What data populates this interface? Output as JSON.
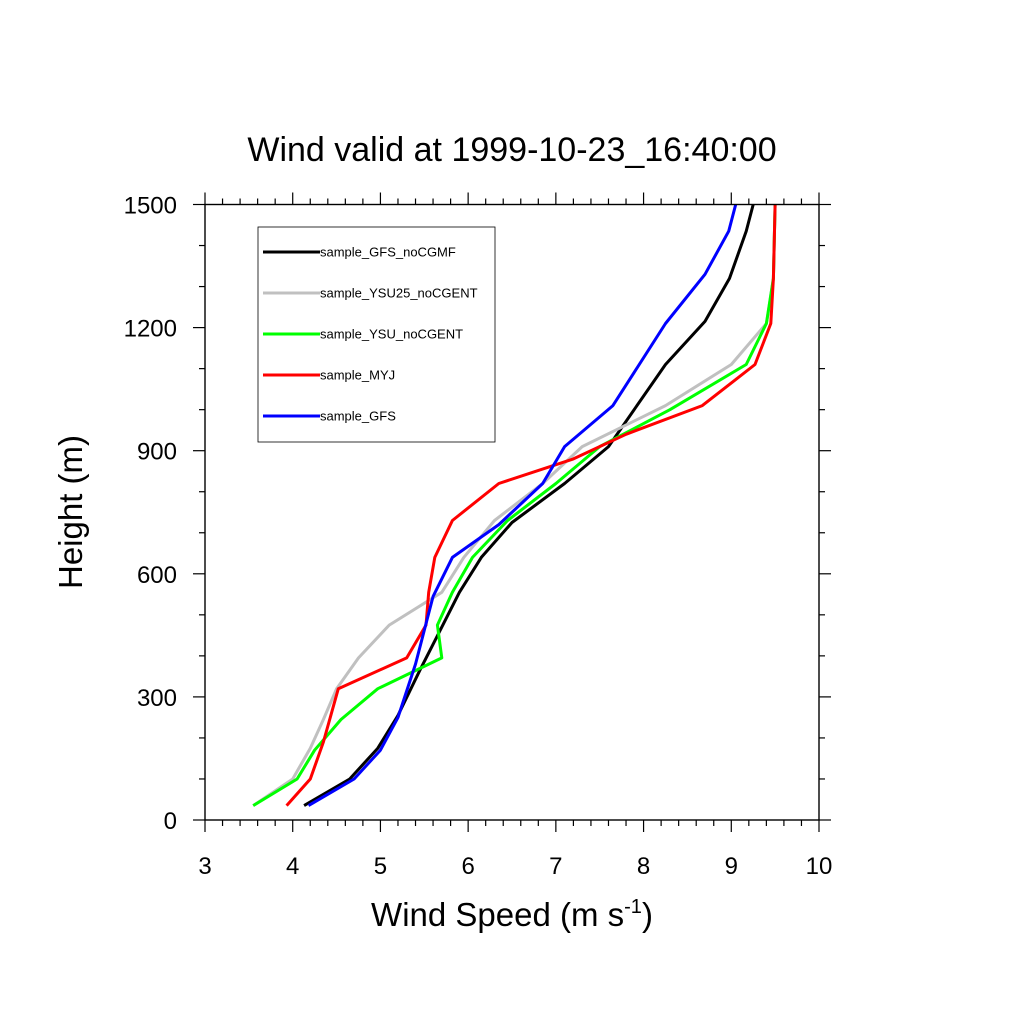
{
  "chart_data": {
    "type": "line",
    "title": "Wind valid at 1999-10-23_16:40:00",
    "xlabel": "Wind Speed (m s",
    "xlabel_superscript": "-1",
    "xlabel_suffix": ")",
    "ylabel": "Height (m)",
    "xlim": [
      3,
      10
    ],
    "ylim": [
      0,
      1500
    ],
    "xticks": [
      3,
      4,
      5,
      6,
      7,
      8,
      9,
      10
    ],
    "yticks": [
      0,
      300,
      600,
      900,
      1200,
      1500
    ],
    "grid": false,
    "legend_position": "top-left",
    "series": [
      {
        "name": "sample_GFS_noCGMF",
        "color": "#000000",
        "points": [
          [
            4.13,
            35
          ],
          [
            4.65,
            100
          ],
          [
            4.97,
            175
          ],
          [
            5.2,
            255
          ],
          [
            5.45,
            365
          ],
          [
            5.7,
            470
          ],
          [
            5.9,
            555
          ],
          [
            6.15,
            640
          ],
          [
            6.5,
            725
          ],
          [
            7.1,
            820
          ],
          [
            7.6,
            910
          ],
          [
            8.25,
            1110
          ],
          [
            8.7,
            1215
          ],
          [
            8.98,
            1320
          ],
          [
            9.17,
            1435
          ],
          [
            9.25,
            1500
          ]
        ]
      },
      {
        "name": "sample_YSU25_noCGENT",
        "color": "#c0c0c0",
        "points": [
          [
            3.55,
            35
          ],
          [
            4.0,
            100
          ],
          [
            4.2,
            175
          ],
          [
            4.35,
            245
          ],
          [
            4.5,
            320
          ],
          [
            4.75,
            395
          ],
          [
            5.1,
            475
          ],
          [
            5.7,
            555
          ],
          [
            5.95,
            640
          ],
          [
            6.3,
            730
          ],
          [
            6.85,
            820
          ],
          [
            7.3,
            910
          ],
          [
            8.25,
            1010
          ],
          [
            9.0,
            1110
          ],
          [
            9.4,
            1210
          ],
          [
            9.48,
            1320
          ],
          [
            9.5,
            1500
          ]
        ]
      },
      {
        "name": "sample_YSU_noCGENT",
        "color": "#00ff00",
        "points": [
          [
            3.55,
            35
          ],
          [
            4.05,
            100
          ],
          [
            4.25,
            170
          ],
          [
            4.55,
            245
          ],
          [
            4.97,
            320
          ],
          [
            5.7,
            395
          ],
          [
            5.65,
            475
          ],
          [
            5.82,
            555
          ],
          [
            6.05,
            640
          ],
          [
            6.45,
            730
          ],
          [
            7.0,
            820
          ],
          [
            7.5,
            910
          ],
          [
            8.3,
            1000
          ],
          [
            9.17,
            1110
          ],
          [
            9.4,
            1210
          ],
          [
            9.48,
            1320
          ],
          [
            9.5,
            1500
          ]
        ]
      },
      {
        "name": "sample_MYJ",
        "color": "#ff0000",
        "points": [
          [
            3.93,
            35
          ],
          [
            4.2,
            100
          ],
          [
            4.35,
            190
          ],
          [
            4.52,
            320
          ],
          [
            5.3,
            395
          ],
          [
            5.52,
            475
          ],
          [
            5.55,
            555
          ],
          [
            5.62,
            640
          ],
          [
            5.82,
            730
          ],
          [
            6.35,
            820
          ],
          [
            7.2,
            880
          ],
          [
            7.8,
            940
          ],
          [
            8.67,
            1010
          ],
          [
            9.27,
            1110
          ],
          [
            9.45,
            1210
          ],
          [
            9.48,
            1320
          ],
          [
            9.5,
            1500
          ]
        ]
      },
      {
        "name": "sample_GFS",
        "color": "#0000ff",
        "points": [
          [
            4.18,
            35
          ],
          [
            4.7,
            100
          ],
          [
            5.0,
            170
          ],
          [
            5.2,
            250
          ],
          [
            5.4,
            380
          ],
          [
            5.6,
            545
          ],
          [
            5.82,
            640
          ],
          [
            6.35,
            720
          ],
          [
            6.85,
            820
          ],
          [
            7.1,
            910
          ],
          [
            7.65,
            1010
          ],
          [
            8.25,
            1210
          ],
          [
            8.7,
            1330
          ],
          [
            8.97,
            1435
          ],
          [
            9.05,
            1500
          ]
        ]
      }
    ]
  }
}
